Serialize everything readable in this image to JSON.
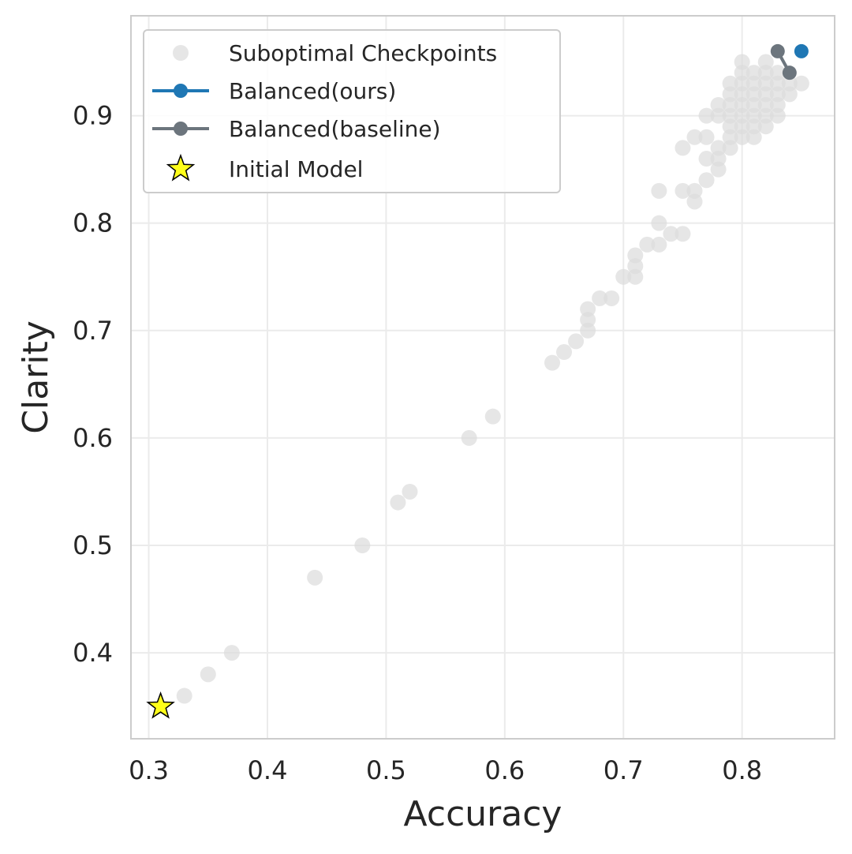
{
  "chart_data": {
    "type": "scatter",
    "xlabel": "Accuracy",
    "ylabel": "Clarity",
    "xlim": [
      0.285,
      0.878
    ],
    "ylim": [
      0.32,
      0.993
    ],
    "xticks": [
      0.3,
      0.4,
      0.5,
      0.6,
      0.7,
      0.8
    ],
    "yticks": [
      0.4,
      0.5,
      0.6,
      0.7,
      0.8,
      0.9
    ],
    "xtick_labels": [
      "0.3",
      "0.4",
      "0.5",
      "0.6",
      "0.7",
      "0.8"
    ],
    "ytick_labels": [
      "0.4",
      "0.5",
      "0.6",
      "0.7",
      "0.8",
      "0.9"
    ],
    "grid": true,
    "legend_position": "upper-left",
    "legend": [
      {
        "label": "Suboptimal Checkpoints",
        "marker": "circle-faded"
      },
      {
        "label": "Balanced(ours)",
        "marker": "line-circle"
      },
      {
        "label": "Balanced(baseline)",
        "marker": "line-circle"
      },
      {
        "label": "Initial Model",
        "marker": "star"
      }
    ],
    "colors": {
      "suboptimal": "#dcdcdc",
      "ours": "#1f77b4",
      "baseline": "#6c757d",
      "initial": "#ffff1a",
      "grid": "#ebebeb",
      "frame": "#cccccc"
    },
    "series": [
      {
        "name": "Suboptimal Checkpoints",
        "kind": "scatter",
        "points": [
          [
            0.33,
            0.36
          ],
          [
            0.35,
            0.38
          ],
          [
            0.37,
            0.4
          ],
          [
            0.44,
            0.47
          ],
          [
            0.48,
            0.5
          ],
          [
            0.51,
            0.54
          ],
          [
            0.52,
            0.55
          ],
          [
            0.57,
            0.6
          ],
          [
            0.59,
            0.62
          ],
          [
            0.64,
            0.67
          ],
          [
            0.65,
            0.68
          ],
          [
            0.66,
            0.69
          ],
          [
            0.67,
            0.7
          ],
          [
            0.67,
            0.71
          ],
          [
            0.67,
            0.72
          ],
          [
            0.68,
            0.73
          ],
          [
            0.69,
            0.73
          ],
          [
            0.7,
            0.75
          ],
          [
            0.71,
            0.75
          ],
          [
            0.71,
            0.76
          ],
          [
            0.71,
            0.77
          ],
          [
            0.72,
            0.78
          ],
          [
            0.73,
            0.78
          ],
          [
            0.73,
            0.8
          ],
          [
            0.74,
            0.79
          ],
          [
            0.75,
            0.79
          ],
          [
            0.73,
            0.83
          ],
          [
            0.75,
            0.83
          ],
          [
            0.76,
            0.82
          ],
          [
            0.76,
            0.83
          ],
          [
            0.77,
            0.84
          ],
          [
            0.78,
            0.85
          ],
          [
            0.75,
            0.87
          ],
          [
            0.76,
            0.88
          ],
          [
            0.77,
            0.86
          ],
          [
            0.77,
            0.88
          ],
          [
            0.78,
            0.86
          ],
          [
            0.78,
            0.87
          ],
          [
            0.79,
            0.87
          ],
          [
            0.79,
            0.88
          ],
          [
            0.77,
            0.9
          ],
          [
            0.78,
            0.9
          ],
          [
            0.78,
            0.91
          ],
          [
            0.79,
            0.89
          ],
          [
            0.79,
            0.9
          ],
          [
            0.79,
            0.91
          ],
          [
            0.79,
            0.92
          ],
          [
            0.79,
            0.93
          ],
          [
            0.8,
            0.88
          ],
          [
            0.8,
            0.89
          ],
          [
            0.8,
            0.9
          ],
          [
            0.8,
            0.91
          ],
          [
            0.8,
            0.92
          ],
          [
            0.8,
            0.93
          ],
          [
            0.8,
            0.94
          ],
          [
            0.8,
            0.95
          ],
          [
            0.81,
            0.88
          ],
          [
            0.81,
            0.89
          ],
          [
            0.81,
            0.9
          ],
          [
            0.81,
            0.91
          ],
          [
            0.81,
            0.92
          ],
          [
            0.81,
            0.93
          ],
          [
            0.81,
            0.94
          ],
          [
            0.82,
            0.89
          ],
          [
            0.82,
            0.9
          ],
          [
            0.82,
            0.91
          ],
          [
            0.82,
            0.92
          ],
          [
            0.82,
            0.93
          ],
          [
            0.82,
            0.94
          ],
          [
            0.82,
            0.95
          ],
          [
            0.83,
            0.9
          ],
          [
            0.83,
            0.91
          ],
          [
            0.83,
            0.92
          ],
          [
            0.83,
            0.93
          ],
          [
            0.83,
            0.94
          ],
          [
            0.84,
            0.92
          ],
          [
            0.84,
            0.93
          ],
          [
            0.85,
            0.93
          ]
        ]
      },
      {
        "name": "Balanced(ours)",
        "kind": "line-marker",
        "points": [
          [
            0.85,
            0.96
          ]
        ]
      },
      {
        "name": "Balanced(baseline)",
        "kind": "line-marker",
        "points": [
          [
            0.83,
            0.96
          ],
          [
            0.84,
            0.94
          ]
        ]
      },
      {
        "name": "Initial Model",
        "kind": "star",
        "points": [
          [
            0.31,
            0.35
          ]
        ]
      }
    ]
  }
}
